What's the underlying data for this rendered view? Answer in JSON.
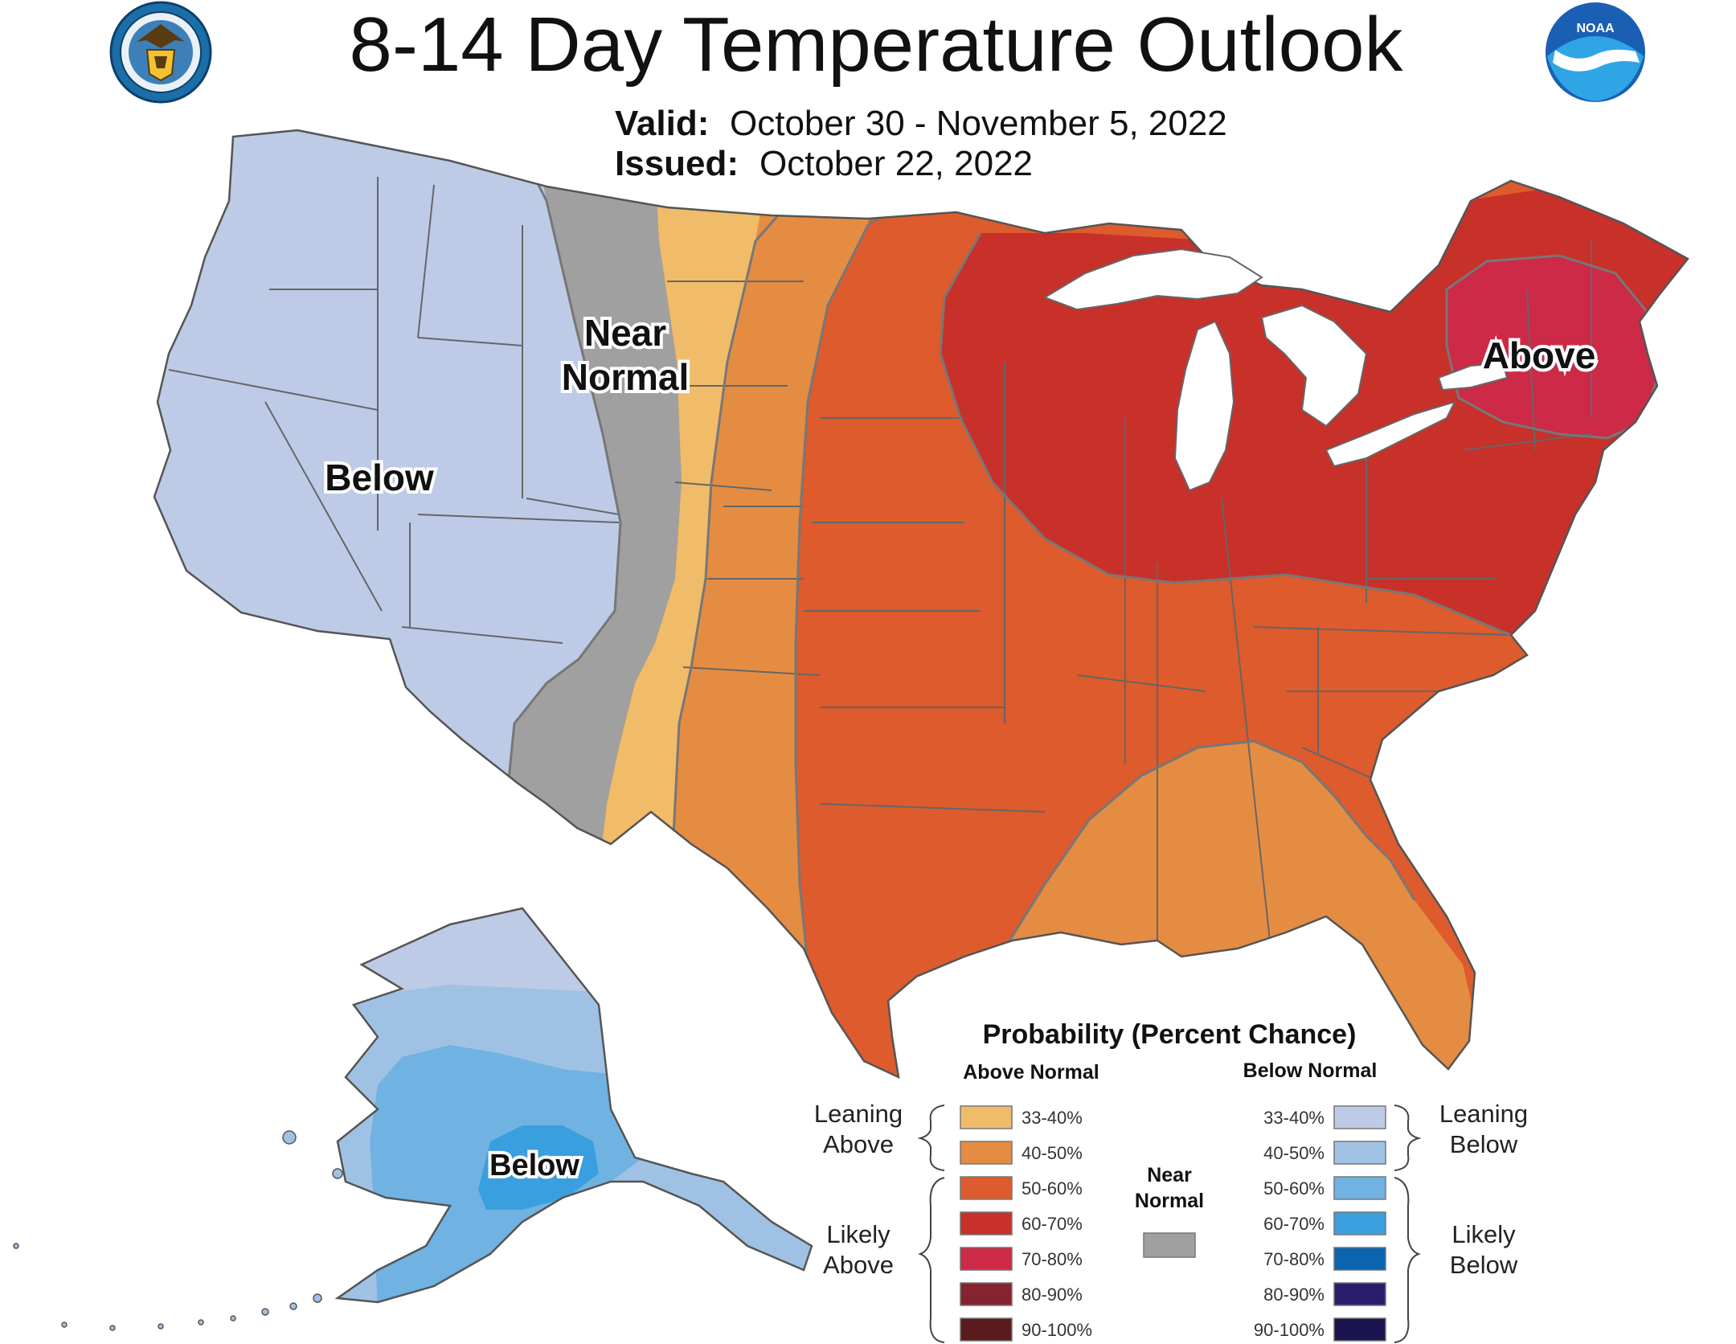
{
  "title": "8-14 Day Temperature Outlook",
  "valid_label": "Valid:",
  "valid_value": "October 30 - November 5, 2022",
  "issued_label": "Issued:",
  "issued_value": "October 22, 2022",
  "logos": {
    "left": "commerce-seal",
    "right": "noaa-logo",
    "right_text": "NOAA"
  },
  "region_labels": {
    "near_line1": "Near",
    "near_line2": "Normal",
    "below_west": "Below",
    "above_ne": "Above",
    "below_alaska": "Below"
  },
  "colors": {
    "below_33_40": "#bdcbe6",
    "below_40_50": "#9fc2e4",
    "below_50_60": "#70b2e2",
    "below_60_70": "#3a9fde",
    "below_70_80": "#0a64b0",
    "below_80_90": "#2b1c6e",
    "below_90_100": "#1a1450",
    "near_normal": "#a0a0a0",
    "above_33_40": "#f0bc6a",
    "above_40_50": "#e58c43",
    "above_50_60": "#dd5b2c",
    "above_60_70": "#c8302a",
    "above_70_80": "#cc2a47",
    "above_80_90": "#852330",
    "above_90_100": "#5b1a1c"
  },
  "legend": {
    "title": "Probability (Percent Chance)",
    "above_header": "Above Normal",
    "below_header": "Below Normal",
    "near_line1": "Near",
    "near_line2": "Normal",
    "leaning_above_1": "Leaning",
    "leaning_above_2": "Above",
    "likely_above_1": "Likely",
    "likely_above_2": "Above",
    "leaning_below_1": "Leaning",
    "leaning_below_2": "Below",
    "likely_below_1": "Likely",
    "likely_below_2": "Below",
    "ranges": [
      "33-40%",
      "40-50%",
      "50-60%",
      "60-70%",
      "70-80%",
      "80-90%",
      "90-100%"
    ]
  }
}
